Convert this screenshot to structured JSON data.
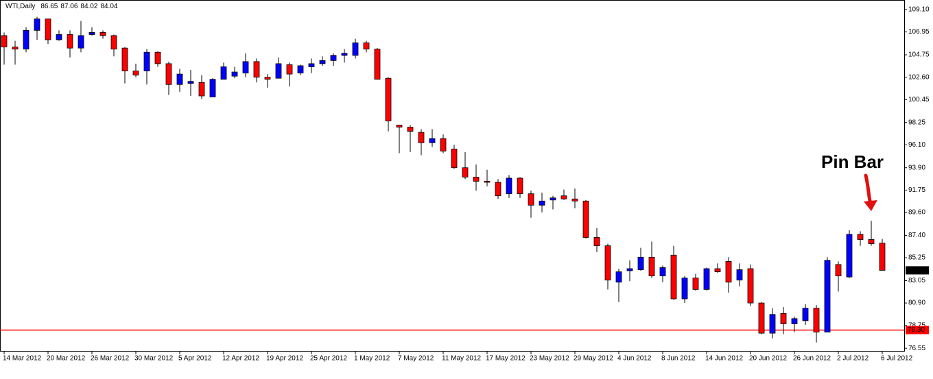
{
  "chart_data": {
    "type": "candlestick",
    "title": "WTI,Daily",
    "annotation": "Pin Bar",
    "categories": [
      "14 Mar 2012",
      null,
      null,
      null,
      "20 Mar 2012",
      null,
      null,
      null,
      "26 Mar 2012",
      null,
      null,
      null,
      "30 Mar 2012",
      null,
      null,
      null,
      "5 Apr 2012",
      null,
      null,
      null,
      "12 Apr 2012",
      null,
      null,
      null,
      "19 Apr 2012",
      null,
      null,
      null,
      "25 Apr 2012",
      null,
      null,
      null,
      "1 May 2012",
      null,
      null,
      null,
      "7 May 2012",
      null,
      null,
      null,
      "11 May 2012",
      null,
      null,
      null,
      "17 May 2012",
      null,
      null,
      null,
      "23 May 2012",
      null,
      null,
      null,
      "29 May 2012",
      null,
      null,
      null,
      "4 Jun 2012",
      null,
      null,
      null,
      "8 Jun 2012",
      null,
      null,
      null,
      "14 Jun 2012",
      null,
      null,
      null,
      "20 Jun 2012",
      null,
      null,
      null,
      "26 Jun 2012",
      null,
      null,
      null,
      "2 Jul 2012",
      null,
      null,
      null,
      "6 Jul 2012"
    ],
    "open": [
      106.6,
      105.5,
      105.3,
      107.1,
      108.2,
      106.2,
      106.7,
      105.4,
      106.7,
      106.9,
      106.6,
      105.4,
      103.2,
      103.2,
      105.0,
      103.9,
      101.9,
      102.0,
      102.1,
      100.7,
      102.4,
      102.7,
      103.0,
      104.1,
      102.6,
      102.5,
      103.8,
      103.0,
      103.6,
      103.9,
      104.2,
      104.7,
      104.7,
      105.9,
      105.3,
      102.5,
      98.0,
      97.8,
      97.3,
      96.3,
      96.7,
      95.7,
      93.9,
      93.0,
      92.6,
      92.5,
      91.4,
      92.9,
      91.4,
      90.3,
      90.8,
      91.2,
      90.9,
      90.7,
      87.2,
      86.4,
      82.9,
      84.0,
      84.1,
      85.3,
      83.5,
      85.5,
      81.3,
      83.3,
      82.2,
      84.2,
      84.9,
      83.1,
      84.2,
      80.9,
      78.0,
      79.9,
      78.9,
      79.2,
      80.4,
      78.1,
      84.6,
      83.4,
      87.5,
      87.0,
      86.65
    ],
    "high": [
      106.9,
      106.1,
      107.4,
      108.4,
      108.2,
      107.1,
      107.1,
      108.0,
      107.4,
      107.1,
      106.7,
      105.5,
      103.9,
      105.3,
      105.1,
      104.1,
      103.4,
      103.3,
      102.8,
      102.5,
      104.0,
      103.6,
      104.9,
      104.4,
      102.9,
      104.5,
      104.0,
      103.8,
      104.4,
      104.6,
      104.9,
      105.3,
      106.3,
      106.1,
      105.4,
      102.6,
      98.0,
      98.0,
      97.6,
      97.6,
      97.1,
      96.1,
      95.4,
      94.2,
      93.7,
      92.8,
      93.2,
      93.0,
      91.7,
      91.5,
      91.2,
      91.8,
      91.9,
      90.8,
      88.1,
      86.6,
      84.2,
      85.0,
      86.2,
      86.8,
      84.5,
      86.4,
      83.5,
      83.7,
      84.3,
      84.7,
      85.3,
      84.7,
      84.6,
      81.0,
      80.4,
      80.5,
      79.6,
      80.8,
      80.7,
      85.3,
      84.9,
      87.9,
      87.8,
      88.8,
      87.06
    ],
    "low": [
      103.8,
      103.8,
      105.0,
      106.2,
      105.8,
      106.1,
      104.5,
      105.0,
      106.6,
      106.3,
      104.6,
      102.0,
      102.6,
      101.9,
      103.6,
      100.9,
      101.2,
      100.8,
      100.5,
      100.7,
      102.4,
      102.5,
      102.6,
      102.1,
      101.6,
      102.5,
      101.7,
      102.8,
      103.0,
      103.7,
      103.7,
      104.0,
      104.4,
      105.0,
      102.4,
      97.4,
      95.3,
      95.4,
      95.1,
      95.9,
      95.3,
      93.8,
      92.8,
      91.7,
      92.1,
      90.9,
      91.0,
      91.0,
      89.1,
      89.6,
      89.9,
      90.8,
      90.0,
      87.1,
      85.8,
      82.2,
      81.0,
      83.0,
      84.0,
      83.3,
      82.9,
      81.2,
      80.9,
      82.1,
      82.1,
      83.8,
      81.9,
      82.5,
      80.6,
      77.9,
      77.5,
      77.9,
      78.1,
      78.8,
      77.1,
      78.1,
      82.0,
      83.3,
      86.4,
      86.4,
      84.02
    ],
    "close": [
      105.5,
      105.3,
      107.1,
      108.2,
      106.2,
      106.7,
      105.4,
      106.6,
      106.9,
      106.6,
      105.3,
      103.2,
      102.8,
      105.0,
      103.9,
      101.9,
      102.9,
      102.2,
      100.8,
      102.4,
      103.6,
      103.1,
      104.1,
      102.6,
      102.4,
      103.9,
      102.9,
      103.7,
      103.9,
      104.2,
      104.7,
      104.9,
      105.9,
      105.3,
      102.4,
      98.4,
      97.8,
      97.4,
      96.3,
      96.7,
      95.5,
      93.9,
      93.0,
      92.6,
      92.5,
      91.2,
      92.9,
      91.4,
      90.3,
      90.7,
      91.0,
      90.9,
      90.7,
      87.2,
      86.4,
      83.1,
      83.9,
      84.2,
      85.3,
      83.5,
      84.3,
      81.3,
      83.3,
      82.2,
      84.2,
      83.9,
      82.9,
      84.1,
      80.9,
      78.0,
      79.8,
      78.9,
      79.4,
      80.4,
      78.1,
      85.0,
      83.5,
      87.5,
      87.0,
      86.6,
      84.04
    ],
    "up_color": "#0000ff",
    "down_color": "#ff0000",
    "ylim": [
      76.23,
      110.02
    ],
    "yticks": [
      {
        "value": 109.1,
        "label": "109.10"
      },
      106.95,
      104.75,
      {
        "value": 102.6,
        "label": "102.60"
      },
      100.45,
      98.25,
      {
        "value": 96.1,
        "label": "96.10"
      },
      {
        "value": 93.9,
        "label": "93.90"
      },
      91.75,
      {
        "value": 89.6,
        "label": "89.60"
      },
      {
        "value": 87.4,
        "label": "87.40"
      },
      85.25,
      83.05,
      {
        "value": 80.9,
        "label": "80.90"
      },
      78.75,
      76.55
    ],
    "hline": {
      "value": 78.3,
      "label": "78.30",
      "color": "#ff0000"
    }
  }
}
